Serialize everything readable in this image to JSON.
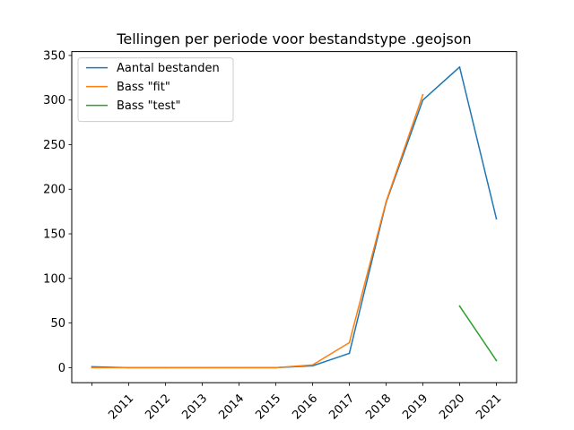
{
  "chart_data": {
    "type": "line",
    "title": "Tellingen per periode voor bestandstype .geojson",
    "xlabel": "",
    "ylabel": "",
    "x_positions": [
      2010,
      2011,
      2012,
      2013,
      2014,
      2015,
      2016,
      2017,
      2018,
      2019,
      2020,
      2021
    ],
    "x_tick_values": [
      2010,
      2011,
      2012,
      2013,
      2014,
      2015,
      2016,
      2017,
      2018,
      2019,
      2020,
      2021
    ],
    "x_tick_labels": [
      "",
      "2011",
      "2012",
      "2013",
      "2014",
      "2015",
      "2016",
      "2017",
      "2018",
      "2019",
      "2020",
      "2021"
    ],
    "y_ticks": [
      0,
      50,
      100,
      150,
      200,
      250,
      300,
      350
    ],
    "ylim": [
      -16.9,
      354.3
    ],
    "xlim": [
      2009.45,
      2021.55
    ],
    "grid": false,
    "legend_position": "top-left",
    "series": [
      {
        "name": "Aantal bestanden",
        "color": "#1f77b4",
        "x": [
          2010,
          2011,
          2012,
          2013,
          2014,
          2015,
          2016,
          2017,
          2018,
          2019,
          2020,
          2021
        ],
        "values": [
          1,
          0,
          0,
          0,
          0,
          0,
          2,
          16,
          185,
          300,
          337,
          167
        ]
      },
      {
        "name": "Bass \"fit\"",
        "color": "#ff7f0e",
        "x": [
          2010,
          2011,
          2012,
          2013,
          2014,
          2015,
          2016,
          2017,
          2018,
          2019
        ],
        "values": [
          0,
          0,
          0,
          0,
          0,
          0,
          3,
          28,
          186,
          306
        ]
      },
      {
        "name": "Bass \"test\"",
        "color": "#2ca02c",
        "x": [
          2020,
          2021
        ],
        "values": [
          69,
          8
        ]
      }
    ]
  }
}
